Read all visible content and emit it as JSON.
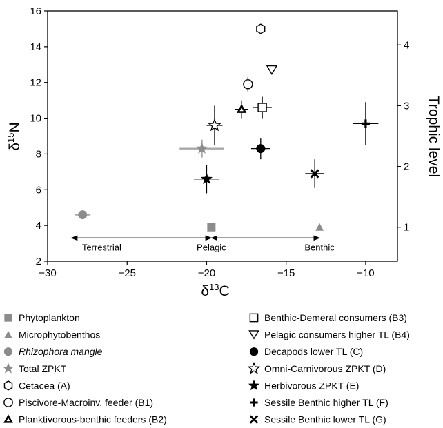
{
  "chart_data": {
    "type": "scatter",
    "title": "",
    "xlabel": "δ13C",
    "ylabel": "δ15N",
    "y2label": "Trophic level",
    "xlim": [
      -30,
      -8
    ],
    "ylim": [
      2,
      16
    ],
    "xticks": [
      -30,
      -25,
      -20,
      -15,
      -10
    ],
    "yticks": [
      2,
      4,
      6,
      8,
      10,
      12,
      14,
      16
    ],
    "y2ticks": [
      1,
      2,
      3,
      4
    ],
    "y2_in_y_units": [
      3.9,
      7.3,
      10.7,
      14.1
    ],
    "grid": false,
    "legend_position": "bottom",
    "zones": {
      "labels": [
        "Terrestrial",
        "Pelagic",
        "Benthic"
      ],
      "arrow_y": 3.3,
      "arrow_spans": [
        [
          -28.5,
          -19.7
        ],
        [
          -19.7,
          -12.9
        ]
      ]
    },
    "series": [
      {
        "name": "Phytoplankton",
        "marker": "square",
        "color": "#8c8c8c",
        "points": [
          {
            "x": -19.7,
            "y": 3.9
          }
        ]
      },
      {
        "name": "Microphytobenthos",
        "marker": "triangle",
        "color": "#8c8c8c",
        "points": [
          {
            "x": -12.9,
            "y": 3.9
          }
        ]
      },
      {
        "name": "Rhizophora mangle",
        "italic": true,
        "marker": "circle",
        "color": "#8c8c8c",
        "points": [
          {
            "x": -27.8,
            "y": 4.6,
            "xerr": 0.5,
            "yerr": 0
          }
        ]
      },
      {
        "name": "Total ZPKT",
        "marker": "star",
        "color": "#8c8c8c",
        "points": [
          {
            "x": -20.3,
            "y": 8.3,
            "xerr": 1.4,
            "yerr": 0.5
          }
        ]
      },
      {
        "name": "Cetacea (A)",
        "marker": "hexagon-open",
        "color": "#000000",
        "points": [
          {
            "x": -16.6,
            "y": 15.0
          }
        ]
      },
      {
        "name": "Piscivore-Macroinv. feeder (B1)",
        "marker": "circle-open",
        "color": "#000000",
        "points": [
          {
            "x": -17.4,
            "y": 11.9,
            "xerr": 0.3,
            "yerr": 0.4
          }
        ]
      },
      {
        "name": "Planktivorous-benthic feeders (B2)",
        "marker": "triangle-bold",
        "color": "#000000",
        "points": [
          {
            "x": -17.8,
            "y": 10.5,
            "xerr": 0.4,
            "yerr": 0.5
          }
        ]
      },
      {
        "name": "Benthic-Demeral consumers (B3)",
        "marker": "square-open",
        "color": "#000000",
        "points": [
          {
            "x": -16.5,
            "y": 10.6,
            "xerr": 0.6,
            "yerr": 0.6
          }
        ]
      },
      {
        "name": "Pelagic consumers higher TL (B4)",
        "marker": "triangle-down-open",
        "color": "#000000",
        "points": [
          {
            "x": -15.9,
            "y": 12.7
          }
        ]
      },
      {
        "name": "Decapods lower TL (C)",
        "marker": "circle",
        "color": "#000000",
        "points": [
          {
            "x": -16.6,
            "y": 8.3,
            "xerr": 0.6,
            "yerr": 0.6
          }
        ]
      },
      {
        "name": "Omni-Carnivorous ZPKT (D)",
        "marker": "star-open",
        "color": "#000000",
        "points": [
          {
            "x": -19.5,
            "y": 9.6,
            "xerr": 0.5,
            "yerr": 1.1
          }
        ]
      },
      {
        "name": "Herbivorous ZPKT (E)",
        "marker": "star",
        "color": "#000000",
        "points": [
          {
            "x": -20.0,
            "y": 6.6,
            "xerr": 0.8,
            "yerr": 0.8
          }
        ]
      },
      {
        "name": "Sessile Benthic higher TL (F)",
        "marker": "plus",
        "color": "#000000",
        "points": [
          {
            "x": -10.0,
            "y": 9.7,
            "xerr": 0.8,
            "yerr": 1.2
          }
        ]
      },
      {
        "name": "Sessile Benthic lower TL (G)",
        "marker": "cross",
        "color": "#000000",
        "points": [
          {
            "x": -13.2,
            "y": 6.9,
            "xerr": 0.6,
            "yerr": 0.8
          }
        ]
      }
    ]
  }
}
